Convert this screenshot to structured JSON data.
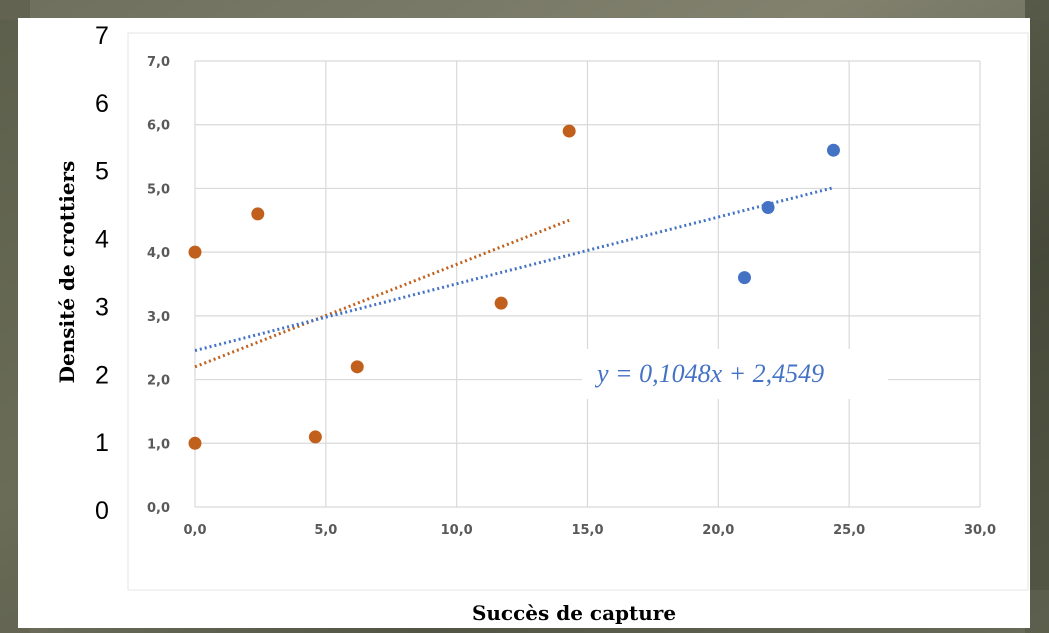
{
  "chart_data": {
    "type": "scatter",
    "xlabel": "Succès de capture",
    "ylabel": "Densité de crottiers",
    "xlim": [
      0,
      30
    ],
    "ylim": [
      0,
      7
    ],
    "x_ticks": [
      "0,0",
      "5,0",
      "10,0",
      "15,0",
      "20,0",
      "25,0",
      "30,0"
    ],
    "y_ticks": [
      "0,0",
      "1,0",
      "2,0",
      "3,0",
      "4,0",
      "5,0",
      "6,0",
      "7,0"
    ],
    "outer_y_ticks": [
      "0",
      "1",
      "2",
      "3",
      "4",
      "5",
      "6",
      "7"
    ],
    "grid": true,
    "series": [
      {
        "color": "#c0601c",
        "points": [
          {
            "x": 0.0,
            "y": 1.0
          },
          {
            "x": 0.0,
            "y": 4.0
          },
          {
            "x": 2.4,
            "y": 4.6
          },
          {
            "x": 4.6,
            "y": 1.1
          },
          {
            "x": 6.2,
            "y": 2.2
          },
          {
            "x": 11.7,
            "y": 3.2
          },
          {
            "x": 14.3,
            "y": 5.9
          }
        ],
        "trend": {
          "x": [
            0.0,
            14.3
          ],
          "y": [
            2.2,
            4.5
          ]
        }
      },
      {
        "color": "#4472c4",
        "points": [
          {
            "x": 21.0,
            "y": 3.6
          },
          {
            "x": 21.9,
            "y": 4.7
          },
          {
            "x": 24.4,
            "y": 5.6
          }
        ],
        "trend": {
          "x": [
            0.0,
            24.4
          ],
          "y": [
            2.4549,
            5.012
          ]
        }
      }
    ],
    "annotations": [
      {
        "text": "y = 0,1048x + 2,4549",
        "color": "#4472c4"
      }
    ]
  },
  "colors": {
    "grid": "#d9d9d9",
    "tick_text": "#595959",
    "frame": "#e6e6e6"
  }
}
